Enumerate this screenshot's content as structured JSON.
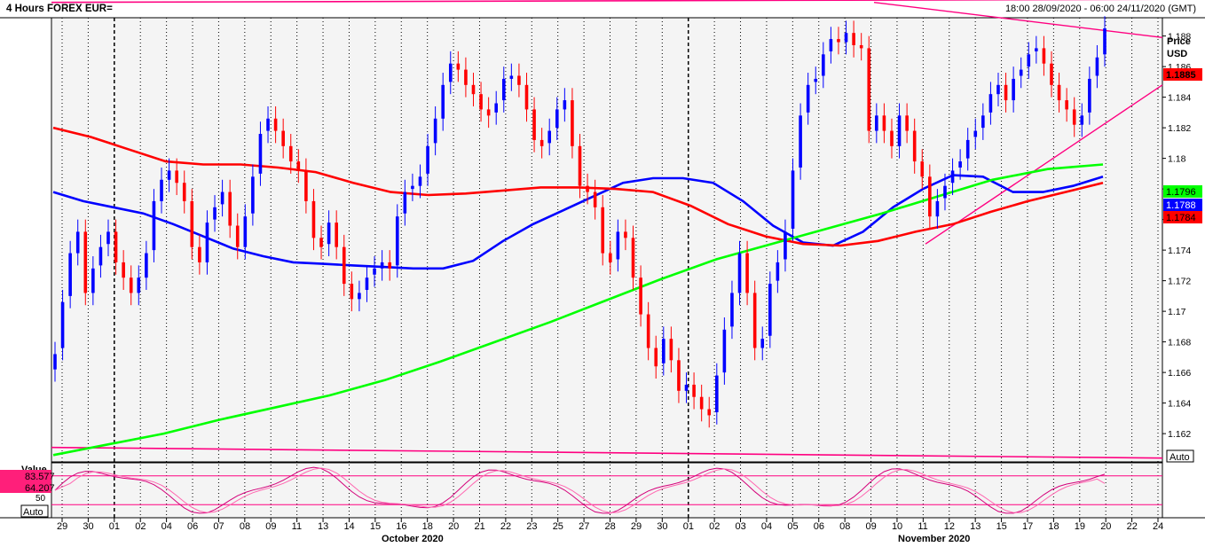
{
  "header": {
    "title": "4 Hours FOREX EUR=",
    "range": "18:00 28/09/2020 - 06:00 24/11/2020 (GMT)"
  },
  "price_axis": {
    "label_line1": "Price",
    "label_line2": "USD",
    "ticks": [
      "1.188",
      "1.186",
      "1.184",
      "1.182",
      "1.18",
      "1.178",
      "1.176",
      "1.174",
      "1.172",
      "1.17",
      "1.168",
      "1.166",
      "1.164",
      "1.162"
    ],
    "auto_button": "Auto"
  },
  "stoch_panel": {
    "label": "Value",
    "value_1": "83.577",
    "value_2": "64.207",
    "tick_50": "50",
    "auto_button": "Auto"
  },
  "colors": {
    "candle_up": "#0000ff",
    "candle_down": "#ff0000",
    "ma_fast": "#0000ff",
    "ma_mid": "#ff0000",
    "ma_slow": "#00ff00",
    "trendline": "#ff0080",
    "grid": "#000000",
    "background": "#f4f4f4"
  },
  "chart_data": {
    "type": "candlestick",
    "title": "4 Hours FOREX EUR=",
    "ylabel": "Price USD",
    "ylim": [
      1.1605,
      1.1885
    ],
    "x_day_labels": [
      "29",
      "30",
      "01",
      "02",
      "04",
      "06",
      "07",
      "08",
      "09",
      "11",
      "13",
      "14",
      "15",
      "16",
      "18",
      "20",
      "21",
      "22",
      "23",
      "25",
      "27",
      "28",
      "29",
      "30",
      "01",
      "02",
      "03",
      "04",
      "05",
      "06",
      "08",
      "09",
      "10",
      "11",
      "12",
      "13",
      "15",
      "17",
      "18",
      "19",
      "20",
      "22",
      "24"
    ],
    "month_labels": [
      "October 2020",
      "November 2020"
    ],
    "last_values": {
      "close": "1.1885",
      "ma_slow": "1.1796",
      "ma_fast": "1.1788",
      "ma_mid": "1.1784"
    },
    "series": [
      {
        "name": "Close",
        "values": [
          1.1672,
          1.1706,
          1.1738,
          1.1752,
          1.1712,
          1.1728,
          1.1742,
          1.1752,
          1.1732,
          1.1722,
          1.1712,
          1.1722,
          1.1738,
          1.1772,
          1.1786,
          1.1792,
          1.1784,
          1.1772,
          1.1742,
          1.1732,
          1.1758,
          1.1768,
          1.1778,
          1.1756,
          1.1742,
          1.1762,
          1.1788,
          1.1816,
          1.1826,
          1.1818,
          1.1808,
          1.1798,
          1.1792,
          1.1772,
          1.1748,
          1.1742,
          1.1758,
          1.1742,
          1.1718,
          1.1708,
          1.1712,
          1.1722,
          1.1728,
          1.1732,
          1.1728,
          1.1762,
          1.1778,
          1.1782,
          1.1788,
          1.1808,
          1.1826,
          1.1848,
          1.1862,
          1.1858,
          1.1848,
          1.1842,
          1.1832,
          1.1828,
          1.1836,
          1.1852,
          1.1854,
          1.1848,
          1.1832,
          1.1812,
          1.1808,
          1.1818,
          1.1832,
          1.1838,
          1.1808,
          1.1782,
          1.1778,
          1.1768,
          1.1738,
          1.1732,
          1.1752,
          1.1748,
          1.1722,
          1.1698,
          1.1676,
          1.1664,
          1.1682,
          1.1668,
          1.1648,
          1.1652,
          1.1644,
          1.1636,
          1.1632,
          1.1658,
          1.1688,
          1.1712,
          1.1738,
          1.1712,
          1.1676,
          1.1682,
          1.1718,
          1.1732,
          1.1752,
          1.1792,
          1.1828,
          1.1848,
          1.1852,
          1.1868,
          1.1878,
          1.1876,
          1.1882,
          1.1874,
          1.1872,
          1.1818,
          1.1828,
          1.1818,
          1.1808,
          1.1828,
          1.1818,
          1.1798,
          1.1788,
          1.1762,
          1.1772,
          1.1782,
          1.1792,
          1.1798,
          1.1812,
          1.1818,
          1.1828,
          1.1842,
          1.1848,
          1.1838,
          1.1852,
          1.1858,
          1.1868,
          1.1872,
          1.1862,
          1.1848,
          1.1838,
          1.1832,
          1.1822,
          1.1828,
          1.1852,
          1.1866,
          1.1885
        ]
      },
      {
        "name": "Open",
        "values": [
          1.1662,
          1.1676,
          1.171,
          1.1738,
          1.1752,
          1.1712,
          1.173,
          1.1744,
          1.1752,
          1.1732,
          1.1722,
          1.1712,
          1.1722,
          1.174,
          1.1772,
          1.1786,
          1.1792,
          1.1784,
          1.1772,
          1.1742,
          1.1732,
          1.176,
          1.177,
          1.1778,
          1.1756,
          1.1742,
          1.1764,
          1.179,
          1.1818,
          1.1826,
          1.1818,
          1.1808,
          1.1798,
          1.1792,
          1.1772,
          1.1748,
          1.1744,
          1.1758,
          1.1742,
          1.1718,
          1.1708,
          1.1714,
          1.1724,
          1.1728,
          1.1732,
          1.173,
          1.1764,
          1.178,
          1.1782,
          1.179,
          1.181,
          1.1826,
          1.185,
          1.1862,
          1.1858,
          1.1848,
          1.1842,
          1.1832,
          1.183,
          1.1838,
          1.1852,
          1.1854,
          1.1848,
          1.1832,
          1.1812,
          1.181,
          1.182,
          1.1832,
          1.1838,
          1.1808,
          1.1782,
          1.1778,
          1.1768,
          1.1738,
          1.1734,
          1.1752,
          1.1748,
          1.1722,
          1.1698,
          1.1676,
          1.1666,
          1.1682,
          1.1668,
          1.1648,
          1.1652,
          1.1644,
          1.1636,
          1.1634,
          1.166,
          1.169,
          1.1712,
          1.1738,
          1.1712,
          1.1676,
          1.1684,
          1.172,
          1.1734,
          1.1754,
          1.1794,
          1.183,
          1.185,
          1.1854,
          1.187,
          1.1878,
          1.1876,
          1.1882,
          1.1874,
          1.1872,
          1.1818,
          1.1828,
          1.1818,
          1.1808,
          1.1828,
          1.1818,
          1.1798,
          1.1788,
          1.1762,
          1.1774,
          1.1784,
          1.1794,
          1.18,
          1.1814,
          1.182,
          1.183,
          1.1842,
          1.1848,
          1.1838,
          1.1854,
          1.186,
          1.187,
          1.1872,
          1.1862,
          1.1848,
          1.1838,
          1.1832,
          1.1822,
          1.183,
          1.1854,
          1.1868
        ]
      }
    ],
    "moving_averages": [
      {
        "color": "blue",
        "values": [
          1.1778,
          1.1772,
          1.1768,
          1.1764,
          1.1757,
          1.1749,
          1.1741,
          1.1736,
          1.1732,
          1.1731,
          1.173,
          1.1729,
          1.1728,
          1.1728,
          1.1733,
          1.1746,
          1.1757,
          1.1766,
          1.1775,
          1.1784,
          1.1787,
          1.1787,
          1.1784,
          1.1772,
          1.1756,
          1.1745,
          1.1743,
          1.1752,
          1.1768,
          1.178,
          1.1789,
          1.1788,
          1.1778,
          1.1778,
          1.1782,
          1.1788
        ]
      },
      {
        "color": "red",
        "values": [
          1.182,
          1.1814,
          1.1806,
          1.1798,
          1.1796,
          1.1796,
          1.1794,
          1.1791,
          1.1784,
          1.1778,
          1.1776,
          1.1777,
          1.1779,
          1.1781,
          1.1781,
          1.178,
          1.1778,
          1.1769,
          1.1757,
          1.1749,
          1.1744,
          1.1743,
          1.1746,
          1.1752,
          1.1757,
          1.1765,
          1.1772,
          1.1778,
          1.1784
        ]
      },
      {
        "color": "green",
        "values": [
          1.1606,
          1.1613,
          1.162,
          1.1629,
          1.1637,
          1.1645,
          1.1655,
          1.1667,
          1.168,
          1.1693,
          1.1707,
          1.1721,
          1.1734,
          1.1744,
          1.1754,
          1.1764,
          1.1775,
          1.1786,
          1.1793,
          1.1796
        ]
      }
    ],
    "annotations": [
      {
        "type": "resistance_line",
        "from": 1.1902,
        "to": 1.1904
      },
      {
        "type": "support_line",
        "from": 1.1611,
        "to": 1.1604
      },
      {
        "type": "descending_trendline",
        "from": 1.1902,
        "to": 1.1879
      },
      {
        "type": "ascending_trendline",
        "from": 1.1744,
        "to": 1.1848
      }
    ],
    "stochastic": {
      "k_last": 83.577,
      "d_last": 64.207,
      "levels": [
        80,
        20
      ]
    }
  }
}
